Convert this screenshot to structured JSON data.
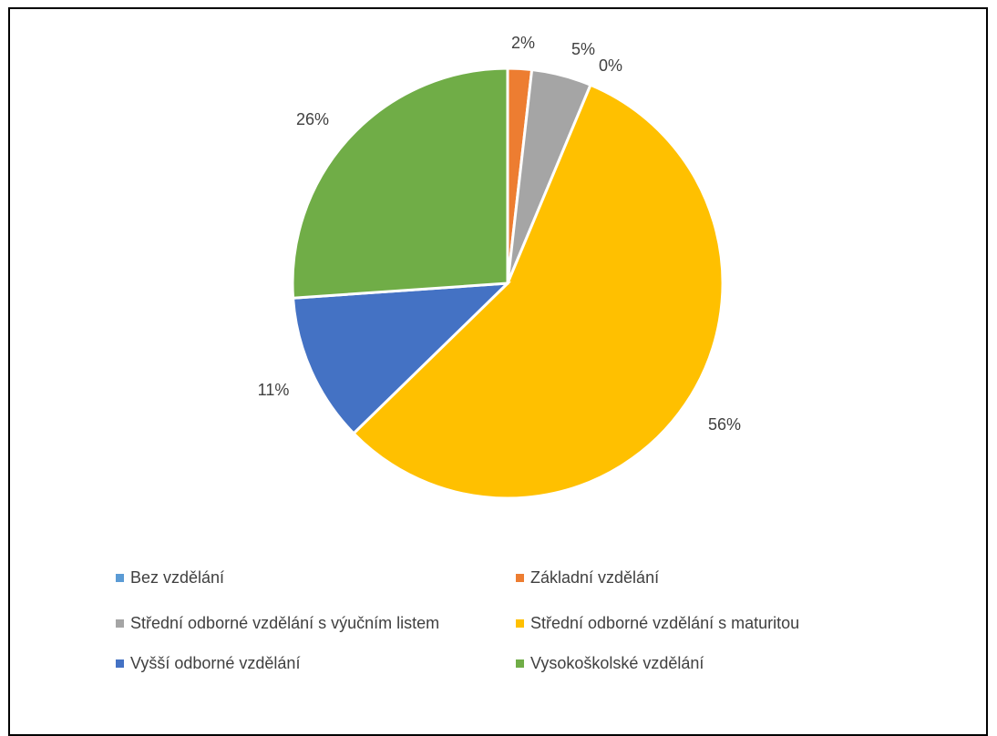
{
  "chart_data": {
    "type": "pie",
    "title": "",
    "categories": [
      "Bez vzdělání",
      "Základní vzdělání",
      "Střední odborné vzdělání s výučním listem",
      "Střední odborné vzdělání s maturitou",
      "Vyšší odborné vzdělání",
      "Vysokoškolské vzdělání"
    ],
    "values": [
      0,
      1.8,
      4.5,
      56.4,
      11.2,
      26.1
    ],
    "data_labels": [
      "0%",
      "2%",
      "5%",
      "56%",
      "11%",
      "26%"
    ],
    "colors": [
      "#5B9BD5",
      "#ED7D31",
      "#A5A5A5",
      "#FFC000",
      "#4472C4",
      "#70AD47"
    ],
    "legend_position": "bottom"
  }
}
